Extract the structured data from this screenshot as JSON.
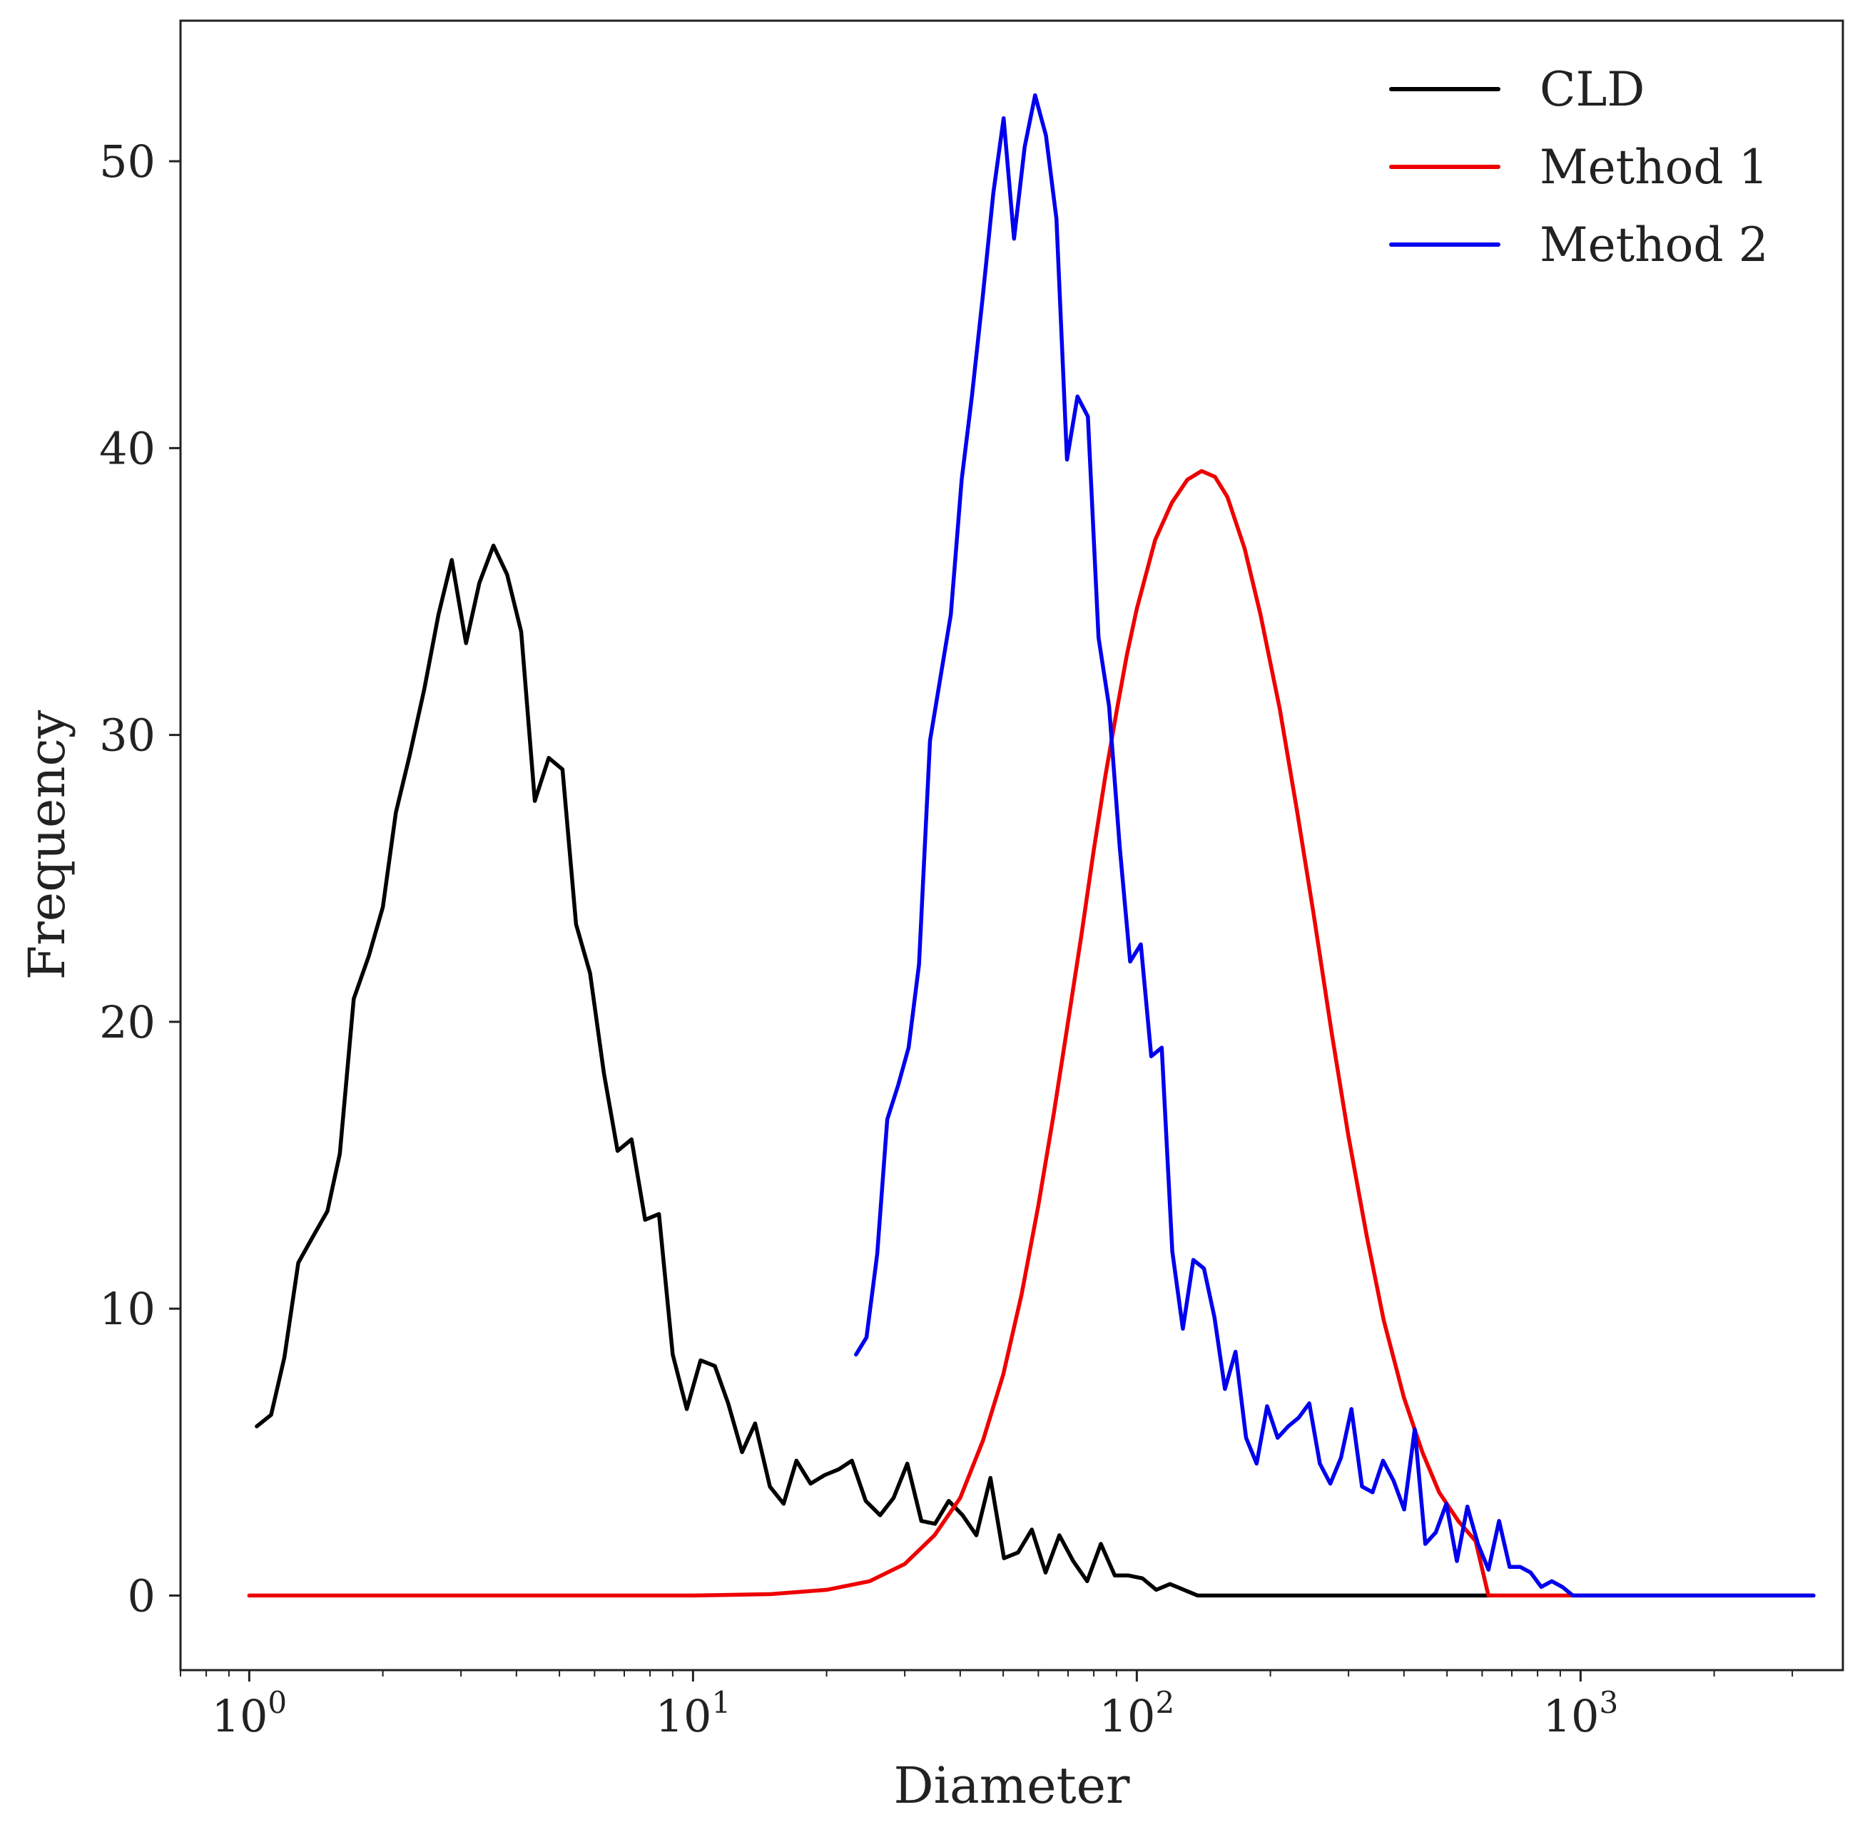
{
  "chart_data": {
    "type": "line",
    "title": "",
    "xlabel": "Diameter",
    "ylabel": "Frequency",
    "xscale": "log",
    "xlim": [
      0.7,
      3900
    ],
    "ylim": [
      -2.6,
      54.9
    ],
    "grid": false,
    "legend_position": "top-right",
    "x_ticks": [
      {
        "value": 1,
        "base": "10",
        "exp": "0"
      },
      {
        "value": 10,
        "base": "10",
        "exp": "1"
      },
      {
        "value": 100,
        "base": "10",
        "exp": "2"
      },
      {
        "value": 1000,
        "base": "10",
        "exp": "3"
      }
    ],
    "y_ticks": [
      {
        "value": 0,
        "label": "0"
      },
      {
        "value": 10,
        "label": "10"
      },
      {
        "value": 20,
        "label": "20"
      },
      {
        "value": 30,
        "label": "30"
      },
      {
        "value": 40,
        "label": "40"
      },
      {
        "value": 50,
        "label": "50"
      }
    ],
    "series": [
      {
        "name": "CLD",
        "color": "#000000",
        "points": [
          [
            1.04,
            5.9
          ],
          [
            1.12,
            6.3
          ],
          [
            1.2,
            8.3
          ],
          [
            1.29,
            11.6
          ],
          [
            1.39,
            12.5
          ],
          [
            1.5,
            13.4
          ],
          [
            1.6,
            15.4
          ],
          [
            1.72,
            20.8
          ],
          [
            1.86,
            22.3
          ],
          [
            2.0,
            24.0
          ],
          [
            2.14,
            27.3
          ],
          [
            2.3,
            29.3
          ],
          [
            2.48,
            31.6
          ],
          [
            2.67,
            34.2
          ],
          [
            2.86,
            36.1
          ],
          [
            3.08,
            33.2
          ],
          [
            3.3,
            35.3
          ],
          [
            3.55,
            36.6
          ],
          [
            3.81,
            35.6
          ],
          [
            4.1,
            33.6
          ],
          [
            4.4,
            27.7
          ],
          [
            4.73,
            29.2
          ],
          [
            5.08,
            28.8
          ],
          [
            5.45,
            23.4
          ],
          [
            5.86,
            21.7
          ],
          [
            6.3,
            18.2
          ],
          [
            6.76,
            15.5
          ],
          [
            7.27,
            15.9
          ],
          [
            7.8,
            13.1
          ],
          [
            8.38,
            13.3
          ],
          [
            9.0,
            8.4
          ],
          [
            9.68,
            6.5
          ],
          [
            10.4,
            8.2
          ],
          [
            11.2,
            8.0
          ],
          [
            12.0,
            6.7
          ],
          [
            12.9,
            5.0
          ],
          [
            13.8,
            6.0
          ],
          [
            14.9,
            3.8
          ],
          [
            16.0,
            3.2
          ],
          [
            17.1,
            4.7
          ],
          [
            18.4,
            3.9
          ],
          [
            19.8,
            4.2
          ],
          [
            21.3,
            4.4
          ],
          [
            22.8,
            4.7
          ],
          [
            24.5,
            3.3
          ],
          [
            26.4,
            2.8
          ],
          [
            28.3,
            3.4
          ],
          [
            30.4,
            4.6
          ],
          [
            32.7,
            2.6
          ],
          [
            35.1,
            2.5
          ],
          [
            37.7,
            3.3
          ],
          [
            40.5,
            2.8
          ],
          [
            43.5,
            2.1
          ],
          [
            46.8,
            4.1
          ],
          [
            50.2,
            1.3
          ],
          [
            54.0,
            1.5
          ],
          [
            58.0,
            2.3
          ],
          [
            62.3,
            0.8
          ],
          [
            66.9,
            2.1
          ],
          [
            71.9,
            1.2
          ],
          [
            77.3,
            0.5
          ],
          [
            83.0,
            1.8
          ],
          [
            89.2,
            0.7
          ],
          [
            95.8,
            0.7
          ],
          [
            103.0,
            0.6
          ],
          [
            110.6,
            0.2
          ],
          [
            118.8,
            0.4
          ],
          [
            127.7,
            0.2
          ],
          [
            137.2,
            0.0
          ],
          [
            200.0,
            0.0
          ],
          [
            400.0,
            0.0
          ],
          [
            620.0,
            0.0
          ]
        ]
      },
      {
        "name": "Method 1",
        "color": "#ee0000",
        "points": [
          [
            1.0,
            0.0
          ],
          [
            5.0,
            0.0
          ],
          [
            10.0,
            0.0
          ],
          [
            15.0,
            0.05
          ],
          [
            20.0,
            0.2
          ],
          [
            25.0,
            0.5
          ],
          [
            30.0,
            1.1
          ],
          [
            35.0,
            2.1
          ],
          [
            40.0,
            3.4
          ],
          [
            45.0,
            5.4
          ],
          [
            50.0,
            7.7
          ],
          [
            55.0,
            10.5
          ],
          [
            60.0,
            13.6
          ],
          [
            65.0,
            16.8
          ],
          [
            70.0,
            20.0
          ],
          [
            75.0,
            23.0
          ],
          [
            80.0,
            26.0
          ],
          [
            85.0,
            28.6
          ],
          [
            90.0,
            30.8
          ],
          [
            95.0,
            32.8
          ],
          [
            100.0,
            34.4
          ],
          [
            110.0,
            36.8
          ],
          [
            120.0,
            38.1
          ],
          [
            130.0,
            38.9
          ],
          [
            140.0,
            39.2
          ],
          [
            150.0,
            39.0
          ],
          [
            160.0,
            38.3
          ],
          [
            175.0,
            36.5
          ],
          [
            190.0,
            34.2
          ],
          [
            210.0,
            30.9
          ],
          [
            230.0,
            27.3
          ],
          [
            250.0,
            23.8
          ],
          [
            275.0,
            19.6
          ],
          [
            300.0,
            16.0
          ],
          [
            330.0,
            12.5
          ],
          [
            360.0,
            9.6
          ],
          [
            400.0,
            6.9
          ],
          [
            440.0,
            5.0
          ],
          [
            480.0,
            3.6
          ],
          [
            530.0,
            2.6
          ],
          [
            580.0,
            1.9
          ],
          [
            620.0,
            0.0
          ],
          [
            800.0,
            0.0
          ],
          [
            1200.0,
            0.0
          ],
          [
            1800.0,
            0.0
          ],
          [
            2700.0,
            0.0
          ],
          [
            3350.0,
            0.0
          ]
        ]
      },
      {
        "name": "Method 2",
        "color": "#0000ee",
        "points": [
          [
            23.3,
            8.4
          ],
          [
            24.6,
            9.0
          ],
          [
            26.0,
            11.9
          ],
          [
            27.4,
            16.6
          ],
          [
            29.0,
            17.8
          ],
          [
            30.6,
            19.1
          ],
          [
            32.3,
            22.0
          ],
          [
            34.2,
            29.8
          ],
          [
            36.1,
            32.0
          ],
          [
            38.1,
            34.2
          ],
          [
            40.3,
            38.9
          ],
          [
            42.5,
            41.8
          ],
          [
            44.9,
            45.2
          ],
          [
            47.5,
            48.9
          ],
          [
            50.1,
            51.5
          ],
          [
            52.9,
            47.3
          ],
          [
            55.9,
            50.5
          ],
          [
            59.0,
            52.3
          ],
          [
            62.4,
            50.9
          ],
          [
            65.9,
            48.0
          ],
          [
            69.6,
            39.6
          ],
          [
            73.5,
            41.8
          ],
          [
            77.6,
            41.1
          ],
          [
            82.0,
            33.4
          ],
          [
            86.6,
            31.0
          ],
          [
            91.5,
            26.1
          ],
          [
            96.6,
            22.1
          ],
          [
            102.1,
            22.7
          ],
          [
            107.8,
            18.8
          ],
          [
            113.8,
            19.1
          ],
          [
            120.2,
            12.0
          ],
          [
            127.0,
            9.3
          ],
          [
            134.1,
            11.7
          ],
          [
            141.7,
            11.4
          ],
          [
            149.6,
            9.7
          ],
          [
            158.0,
            7.2
          ],
          [
            166.9,
            8.5
          ],
          [
            176.3,
            5.5
          ],
          [
            186.2,
            4.6
          ],
          [
            196.6,
            6.6
          ],
          [
            207.7,
            5.5
          ],
          [
            219.4,
            5.9
          ],
          [
            231.7,
            6.2
          ],
          [
            244.7,
            6.7
          ],
          [
            258.5,
            4.6
          ],
          [
            273.0,
            3.9
          ],
          [
            288.4,
            4.8
          ],
          [
            304.6,
            6.5
          ],
          [
            321.7,
            3.8
          ],
          [
            339.8,
            3.6
          ],
          [
            358.9,
            4.7
          ],
          [
            379.1,
            4.0
          ],
          [
            400.4,
            3.0
          ],
          [
            422.9,
            5.8
          ],
          [
            446.7,
            1.8
          ],
          [
            471.8,
            2.2
          ],
          [
            498.3,
            3.2
          ],
          [
            526.3,
            1.2
          ],
          [
            555.9,
            3.1
          ],
          [
            587.2,
            1.8
          ],
          [
            620.2,
            0.9
          ],
          [
            655.0,
            2.6
          ],
          [
            691.9,
            1.0
          ],
          [
            730.8,
            1.0
          ],
          [
            771.8,
            0.8
          ],
          [
            815.2,
            0.3
          ],
          [
            861.1,
            0.5
          ],
          [
            909.5,
            0.3
          ],
          [
            960.7,
            0.0
          ],
          [
            1200.0,
            0.0
          ],
          [
            1800.0,
            0.0
          ],
          [
            2700.0,
            0.0
          ],
          [
            3350.0,
            0.0
          ]
        ]
      }
    ]
  }
}
